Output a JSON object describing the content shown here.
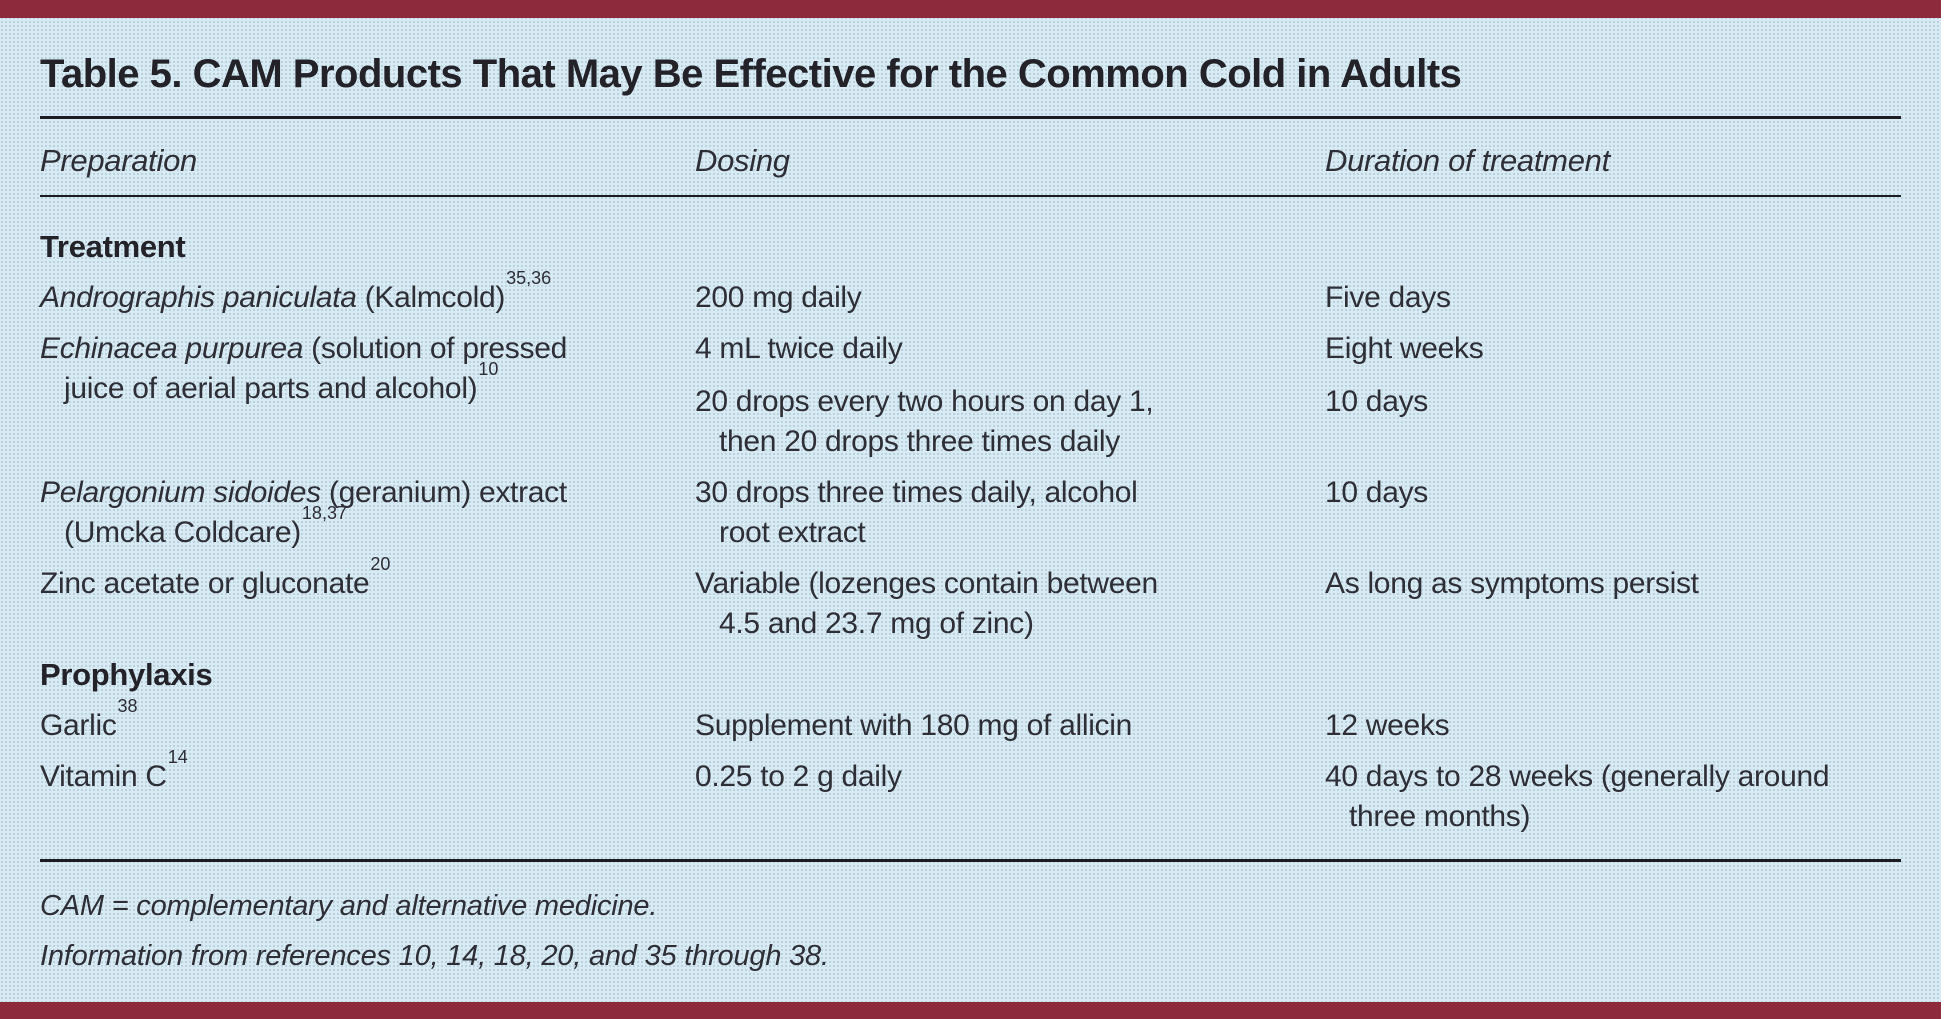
{
  "colors": {
    "accent_bar": "#8d2b3d",
    "background": "#d9eaf2",
    "text": "#2e2e36",
    "rule": "#1c1c22"
  },
  "table": {
    "title": "Table 5. CAM Products That May Be Effective for the Common Cold in Adults",
    "columns": {
      "preparation": "Preparation",
      "dosing": "Dosing",
      "duration": "Duration of treatment"
    },
    "sections": [
      {
        "label": "Treatment",
        "rows": [
          {
            "prep_italic": "Andrographis paniculata",
            "prep_regular": " (Kalmcold)",
            "prep_sup": "35,36",
            "entries": [
              {
                "dosing": [
                  "200 mg daily"
                ],
                "duration": [
                  "Five days"
                ]
              }
            ]
          },
          {
            "prep_italic": "Echinacea purpurea",
            "prep_regular": " (solution of pressed",
            "prep_line2": "juice of aerial parts and alcohol)",
            "prep_line2_sup": "10",
            "entries": [
              {
                "dosing": [
                  "4 mL twice daily"
                ],
                "duration": [
                  "Eight weeks"
                ]
              },
              {
                "dosing": [
                  "20 drops every two hours on day 1,",
                  "then 20 drops three times daily"
                ],
                "duration": [
                  "10 days"
                ]
              }
            ]
          },
          {
            "prep_italic": "Pelargonium sidoides",
            "prep_regular": " (geranium) extract",
            "prep_line2": "(Umcka Coldcare)",
            "prep_line2_sup": "18,37",
            "entries": [
              {
                "dosing": [
                  "30 drops three times daily, alcohol",
                  "root extract"
                ],
                "duration": [
                  "10 days"
                ]
              }
            ]
          },
          {
            "prep_regular": "Zinc acetate or gluconate",
            "prep_sup": "20",
            "entries": [
              {
                "dosing": [
                  "Variable (lozenges contain between",
                  "4.5 and 23.7 mg of zinc)"
                ],
                "duration": [
                  "As long as symptoms persist"
                ]
              }
            ]
          }
        ]
      },
      {
        "label": "Prophylaxis",
        "rows": [
          {
            "prep_regular": "Garlic",
            "prep_sup": "38",
            "entries": [
              {
                "dosing": [
                  "Supplement with 180 mg of allicin"
                ],
                "duration": [
                  "12 weeks"
                ]
              }
            ]
          },
          {
            "prep_regular": "Vitamin C",
            "prep_sup": "14",
            "entries": [
              {
                "dosing": [
                  "0.25 to 2 g daily"
                ],
                "duration": [
                  "40 days to 28 weeks (generally around",
                  "three months)"
                ]
              }
            ]
          }
        ]
      }
    ]
  },
  "footnotes": [
    "CAM = complementary and alternative medicine.",
    "Information from references 10, 14, 18, 20, and 35 through 38."
  ]
}
